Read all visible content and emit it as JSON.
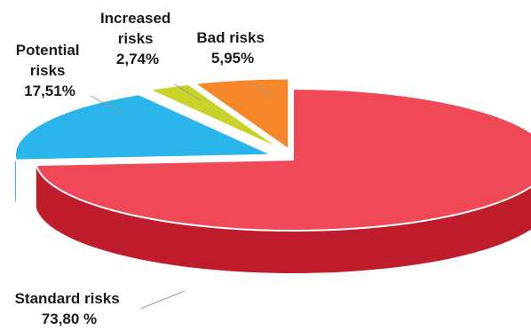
{
  "chart_data": {
    "type": "pie",
    "style": "3d-exploded",
    "title": "",
    "slices": [
      {
        "name": "Standard risks",
        "value": 73.8,
        "label_lines": [
          "Standard risks"
        ],
        "value_label": "73,80 %",
        "color": "#ef4958",
        "side_color": "#c01d2c"
      },
      {
        "name": "Potential risks",
        "value": 17.51,
        "label_lines": [
          "Potential",
          "risks"
        ],
        "value_label": "17,51%",
        "color": "#29b4ea",
        "side_color": "#168cbd"
      },
      {
        "name": "Increased risks",
        "value": 2.74,
        "label_lines": [
          "Increased",
          "risks"
        ],
        "value_label": "2,74%",
        "color": "#c8d32a",
        "side_color": "#9ea51b"
      },
      {
        "name": "Bad risks",
        "value": 5.95,
        "label_lines": [
          "Bad risks"
        ],
        "value_label": "5,95%",
        "color": "#f6862a",
        "side_color": "#c8651a"
      }
    ],
    "legend": "none"
  }
}
